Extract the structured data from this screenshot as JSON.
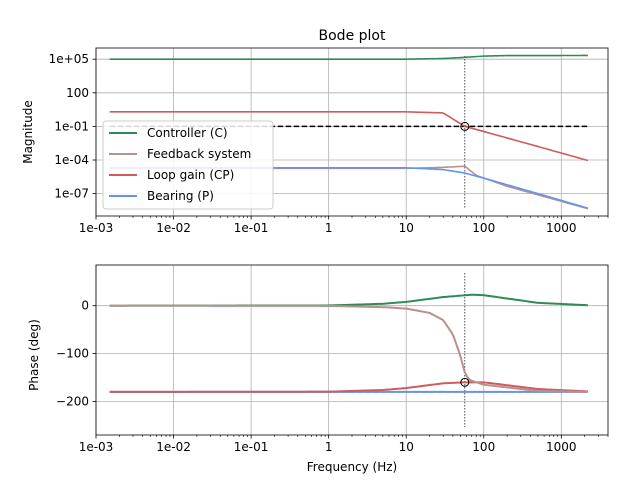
{
  "chart_data": {
    "type": "line",
    "title": "Bode plot",
    "x_label": "Frequency (Hz)",
    "x_scale": "log",
    "x_range": [
      0.001,
      4000
    ],
    "x_ticks": [
      {
        "value": 0.001,
        "label": "1e-03"
      },
      {
        "value": 0.01,
        "label": "1e-02"
      },
      {
        "value": 0.1,
        "label": "1e-01"
      },
      {
        "value": 1,
        "label": "1"
      },
      {
        "value": 10,
        "label": "10"
      },
      {
        "value": 100,
        "label": "100"
      },
      {
        "value": 1000,
        "label": "1000"
      }
    ],
    "grid": true,
    "marker": {
      "frequency": 57,
      "magnitude": 0.1,
      "phase": -160,
      "symbol": "open circle"
    },
    "series": [
      {
        "name": "Controller (C)",
        "color": "#2e8b57"
      },
      {
        "name": "Feedback system",
        "color": "#bc8f8f"
      },
      {
        "name": "Loop gain (CP)",
        "color": "#cd5c5c"
      },
      {
        "name": "Bearing (P)",
        "color": "#6495ed"
      }
    ],
    "magnitude_panel": {
      "y_label": "Magnitude",
      "y_scale": "log",
      "y_range_log10": [
        -9,
        6
      ],
      "y_ticks": [
        {
          "value": 100000,
          "label": "1e+05"
        },
        {
          "value": 100,
          "label": "100"
        },
        {
          "value": 0.1,
          "label": "1e-01"
        },
        {
          "value": 0.0001,
          "label": "1e-04"
        },
        {
          "value": 1e-07,
          "label": "1e-07"
        }
      ],
      "reference_line": {
        "value": 0.1,
        "style": "black dashed"
      },
      "legend_position": "lower left",
      "curves": {
        "Controller (C)": [
          [
            0.0015,
            100000
          ],
          [
            10,
            101000
          ],
          [
            30,
            115000
          ],
          [
            60,
            150000
          ],
          [
            100,
            190000
          ],
          [
            200,
            210000
          ],
          [
            2200,
            215000
          ]
        ],
        "Feedback system": [
          [
            0.0015,
            1.8e-05
          ],
          [
            10,
            1.8e-05
          ],
          [
            30,
            2.2e-05
          ],
          [
            57,
            2.8e-05
          ],
          [
            80,
            4.2e-06
          ],
          [
            200,
            4.5e-07
          ],
          [
            2200,
            4.5e-09
          ]
        ],
        "Loop gain (CP)": [
          [
            0.0015,
            2
          ],
          [
            10,
            2
          ],
          [
            30,
            1.6
          ],
          [
            57,
            0.1
          ],
          [
            100,
            0.035
          ],
          [
            500,
            0.0016
          ],
          [
            2200,
            9e-05
          ]
        ],
        "Bearing (P)": [
          [
            0.0015,
            2e-05
          ],
          [
            10,
            2e-05
          ],
          [
            30,
            1.4e-05
          ],
          [
            57,
            6.8e-06
          ],
          [
            100,
            2.4e-06
          ],
          [
            500,
            1e-07
          ],
          [
            2200,
            5e-09
          ]
        ]
      }
    },
    "phase_panel": {
      "y_label": "Phase (deg)",
      "y_range": [
        -270,
        85
      ],
      "y_ticks": [
        {
          "value": 0,
          "label": "0"
        },
        {
          "value": -100,
          "label": "−100"
        },
        {
          "value": -200,
          "label": "−200"
        }
      ],
      "reference_line": {
        "value": -180,
        "style": "black dashed"
      },
      "curves": {
        "Controller (C)": [
          [
            0.0015,
            0
          ],
          [
            1,
            0.5
          ],
          [
            5,
            4
          ],
          [
            10,
            8
          ],
          [
            30,
            18
          ],
          [
            70,
            23
          ],
          [
            100,
            22
          ],
          [
            200,
            15
          ],
          [
            500,
            6
          ],
          [
            2200,
            1
          ]
        ],
        "Feedback system": [
          [
            0.0015,
            0
          ],
          [
            1,
            -0.5
          ],
          [
            5,
            -3
          ],
          [
            10,
            -6
          ],
          [
            20,
            -15
          ],
          [
            30,
            -30
          ],
          [
            40,
            -60
          ],
          [
            50,
            -105
          ],
          [
            57,
            -140
          ],
          [
            65,
            -155
          ],
          [
            100,
            -165
          ],
          [
            500,
            -178
          ],
          [
            2200,
            -180
          ]
        ],
        "Loop gain (CP)": [
          [
            0.0015,
            -180
          ],
          [
            1,
            -179.5
          ],
          [
            5,
            -176
          ],
          [
            10,
            -172
          ],
          [
            30,
            -162
          ],
          [
            57,
            -160
          ],
          [
            100,
            -160
          ],
          [
            200,
            -166
          ],
          [
            500,
            -174
          ],
          [
            2200,
            -179
          ]
        ],
        "Bearing (P)": [
          [
            0.0015,
            -180
          ],
          [
            2200,
            -180
          ]
        ]
      }
    }
  }
}
